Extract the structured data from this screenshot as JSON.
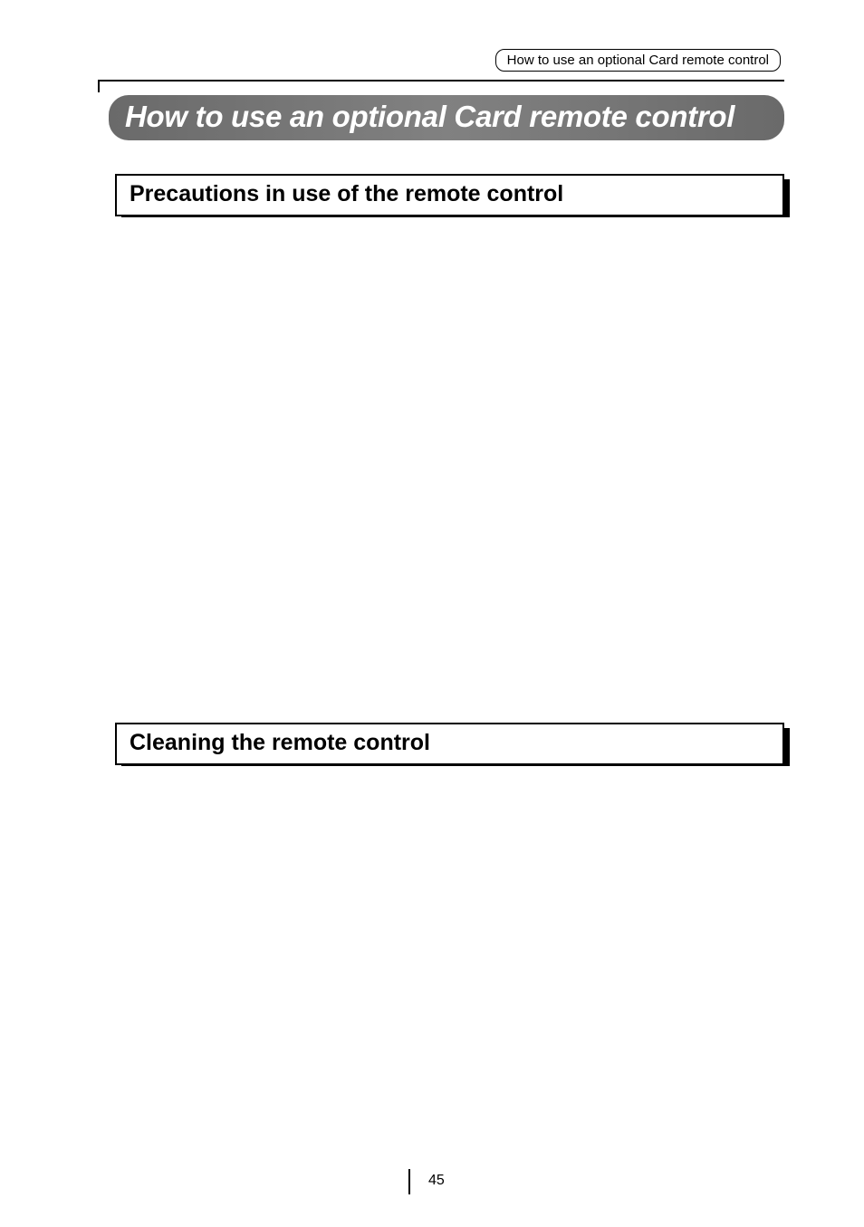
{
  "header": {
    "label": "How to use an optional Card remote control"
  },
  "title": "How to use an optional Card remote control",
  "sections": [
    {
      "heading": "Precautions in use of the remote control"
    },
    {
      "heading": "Cleaning the remote control"
    }
  ],
  "page_number": "45",
  "colors": {
    "background": "#ffffff",
    "title_bar_bg": "#757575",
    "title_text": "#ffffff",
    "border": "#000000",
    "text": "#000000"
  },
  "typography": {
    "header_label_fontsize": 15,
    "title_fontsize": 33,
    "section_heading_fontsize": 25,
    "page_number_fontsize": 16
  }
}
